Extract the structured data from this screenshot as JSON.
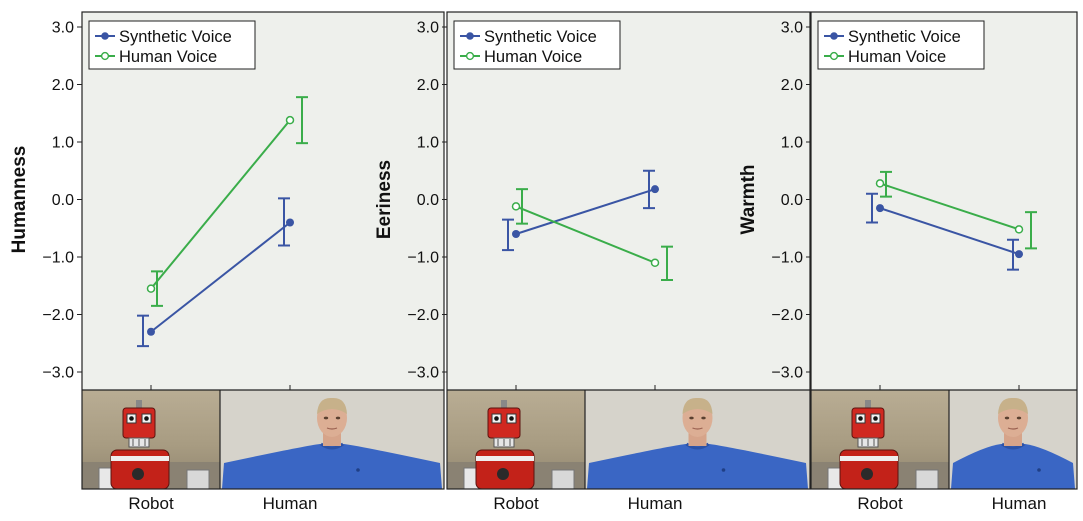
{
  "colors": {
    "synthetic": "#3a55a4",
    "human": "#3aad4a",
    "plot_bg": "#eef0ec",
    "axis": "#222222"
  },
  "chart_data": [
    {
      "type": "line",
      "ylabel": "Humanness",
      "categories": [
        "Robot",
        "Human"
      ],
      "ylim": [
        -3.3,
        3.3
      ],
      "yticks": [
        3.0,
        2.0,
        1.0,
        0.0,
        -1.0,
        -2.0,
        -3.0
      ],
      "ytick_labels": [
        "3.0",
        "2.0",
        "1.0",
        "0.0",
        "−1.0",
        "−2.0",
        "−3.0"
      ],
      "grid": false,
      "legend": "top-left",
      "series": [
        {
          "name": "Synthetic Voice",
          "marker": "filled-circle",
          "values": [
            -2.3,
            -0.4
          ],
          "ci_low": [
            -2.55,
            -0.8
          ],
          "ci_high": [
            -2.02,
            0.02
          ]
        },
        {
          "name": "Human Voice",
          "marker": "open-circle",
          "values": [
            -1.55,
            1.38
          ],
          "ci_low": [
            -1.85,
            0.98
          ],
          "ci_high": [
            -1.25,
            1.78
          ]
        }
      ]
    },
    {
      "type": "line",
      "ylabel": "Eeriness",
      "categories": [
        "Robot",
        "Human"
      ],
      "ylim": [
        -3.3,
        3.3
      ],
      "yticks": [
        3.0,
        2.0,
        1.0,
        0.0,
        -1.0,
        -2.0,
        -3.0
      ],
      "ytick_labels": [
        "3.0",
        "2.0",
        "1.0",
        "0.0",
        "−1.0",
        "−2.0",
        "−3.0"
      ],
      "grid": false,
      "legend": "top-left",
      "series": [
        {
          "name": "Synthetic Voice",
          "marker": "filled-circle",
          "values": [
            -0.6,
            0.18
          ],
          "ci_low": [
            -0.88,
            -0.15
          ],
          "ci_high": [
            -0.35,
            0.5
          ]
        },
        {
          "name": "Human Voice",
          "marker": "open-circle",
          "values": [
            -0.12,
            -1.1
          ],
          "ci_low": [
            -0.42,
            -1.4
          ],
          "ci_high": [
            0.18,
            -0.82
          ]
        }
      ]
    },
    {
      "type": "line",
      "ylabel": "Warmth",
      "categories": [
        "Robot",
        "Human"
      ],
      "ylim": [
        -3.3,
        3.3
      ],
      "yticks": [
        3.0,
        2.0,
        1.0,
        0.0,
        -1.0,
        -2.0,
        -3.0
      ],
      "ytick_labels": [
        "3.0",
        "2.0",
        "1.0",
        "0.0",
        "−1.0",
        "−2.0",
        "−3.0"
      ],
      "grid": false,
      "legend": "top-left",
      "series": [
        {
          "name": "Synthetic Voice",
          "marker": "filled-circle",
          "values": [
            -0.15,
            -0.95
          ],
          "ci_low": [
            -0.4,
            -1.22
          ],
          "ci_high": [
            0.1,
            -0.7
          ]
        },
        {
          "name": "Human Voice",
          "marker": "open-circle",
          "values": [
            0.28,
            -0.52
          ],
          "ci_low": [
            0.05,
            -0.85
          ],
          "ci_high": [
            0.48,
            -0.22
          ]
        }
      ]
    }
  ]
}
